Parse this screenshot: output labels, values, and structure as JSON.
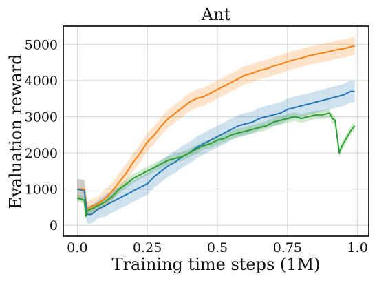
{
  "chart_data": {
    "type": "line",
    "title": "Ant",
    "xlabel": "Training time steps (1M)",
    "ylabel": "Evaluation reward",
    "xlim": [
      -0.05,
      1.04
    ],
    "ylim": [
      -300,
      5500
    ],
    "xticks": [
      0.0,
      0.25,
      0.5,
      0.75,
      1.0
    ],
    "xtick_labels": [
      "0.0",
      "0.25",
      "0.5",
      "0.75",
      "1.0"
    ],
    "yticks": [
      0,
      1000,
      2000,
      3000,
      4000,
      5000
    ],
    "ytick_labels": [
      "0",
      "1000",
      "2000",
      "3000",
      "4000",
      "5000"
    ],
    "grid": true,
    "shaded_band": true,
    "series": [
      {
        "color": "#ff7f0e",
        "x": [
          0.0,
          0.025,
          0.035,
          0.05,
          0.075,
          0.1,
          0.125,
          0.15,
          0.175,
          0.2,
          0.225,
          0.25,
          0.275,
          0.3,
          0.325,
          0.35,
          0.375,
          0.4,
          0.425,
          0.45,
          0.475,
          0.5,
          0.525,
          0.55,
          0.575,
          0.6,
          0.625,
          0.65,
          0.675,
          0.7,
          0.725,
          0.75,
          0.775,
          0.8,
          0.825,
          0.85,
          0.875,
          0.9,
          0.925,
          0.95,
          0.975,
          0.99
        ],
        "values": [
          1000,
          1000,
          450,
          520,
          600,
          750,
          950,
          1200,
          1450,
          1750,
          2000,
          2300,
          2500,
          2750,
          2950,
          3100,
          3250,
          3400,
          3500,
          3550,
          3650,
          3750,
          3850,
          3950,
          4050,
          4150,
          4200,
          4280,
          4320,
          4400,
          4450,
          4520,
          4580,
          4620,
          4680,
          4720,
          4760,
          4800,
          4850,
          4880,
          4930,
          4950
        ],
        "band": [
          250,
          250,
          200,
          200,
          200,
          250,
          250,
          250,
          250,
          250,
          250,
          250,
          250,
          250,
          250,
          250,
          250,
          250,
          250,
          250,
          250,
          250,
          250,
          250,
          250,
          250,
          250,
          250,
          250,
          250,
          250,
          250,
          250,
          250,
          250,
          250,
          250,
          250,
          250,
          250,
          250,
          250
        ]
      },
      {
        "color": "#1f77b4",
        "x": [
          0.0,
          0.025,
          0.035,
          0.05,
          0.075,
          0.1,
          0.125,
          0.15,
          0.175,
          0.2,
          0.225,
          0.25,
          0.275,
          0.3,
          0.325,
          0.35,
          0.375,
          0.4,
          0.425,
          0.45,
          0.475,
          0.5,
          0.525,
          0.55,
          0.575,
          0.6,
          0.625,
          0.65,
          0.675,
          0.7,
          0.725,
          0.75,
          0.775,
          0.8,
          0.825,
          0.85,
          0.875,
          0.9,
          0.925,
          0.95,
          0.975,
          0.99
        ],
        "values": [
          1000,
          950,
          300,
          300,
          450,
          550,
          650,
          750,
          850,
          950,
          1050,
          1150,
          1350,
          1500,
          1650,
          1750,
          1900,
          2000,
          2150,
          2250,
          2350,
          2450,
          2550,
          2650,
          2750,
          2800,
          2850,
          2950,
          3000,
          3050,
          3100,
          3200,
          3250,
          3300,
          3350,
          3400,
          3450,
          3500,
          3550,
          3600,
          3700,
          3700
        ],
        "band": [
          300,
          300,
          250,
          250,
          250,
          300,
          300,
          300,
          300,
          300,
          300,
          300,
          300,
          300,
          300,
          300,
          300,
          300,
          300,
          300,
          300,
          300,
          300,
          300,
          300,
          300,
          300,
          300,
          300,
          300,
          300,
          300,
          300,
          300,
          300,
          300,
          300,
          300,
          300,
          300,
          300,
          300
        ]
      },
      {
        "color": "#2ca02c",
        "x": [
          0.0,
          0.025,
          0.03,
          0.035,
          0.05,
          0.075,
          0.1,
          0.125,
          0.15,
          0.175,
          0.2,
          0.225,
          0.25,
          0.275,
          0.3,
          0.325,
          0.35,
          0.375,
          0.4,
          0.425,
          0.45,
          0.475,
          0.5,
          0.525,
          0.55,
          0.575,
          0.6,
          0.625,
          0.65,
          0.675,
          0.7,
          0.725,
          0.75,
          0.775,
          0.8,
          0.825,
          0.85,
          0.875,
          0.9,
          0.91,
          0.92,
          0.935,
          0.945,
          0.96,
          0.975,
          0.99
        ],
        "values": [
          750,
          700,
          250,
          400,
          450,
          550,
          650,
          800,
          1000,
          1150,
          1300,
          1400,
          1500,
          1600,
          1700,
          1800,
          1850,
          1900,
          2000,
          2100,
          2200,
          2250,
          2350,
          2400,
          2500,
          2550,
          2600,
          2650,
          2700,
          2750,
          2850,
          2900,
          2950,
          3000,
          2950,
          3000,
          3050,
          3050,
          3100,
          2950,
          2900,
          2000,
          2200,
          2400,
          2600,
          2750
        ],
        "band": [
          100,
          100,
          100,
          100,
          100,
          100,
          100,
          100,
          120,
          120,
          120,
          120,
          120,
          120,
          120,
          120,
          120,
          120,
          120,
          120,
          120,
          120,
          120,
          120,
          120,
          120,
          120,
          120,
          120,
          120,
          120,
          120,
          120,
          120,
          120,
          120,
          120,
          120,
          120,
          120,
          120,
          120,
          120,
          120,
          120,
          120
        ]
      }
    ]
  }
}
